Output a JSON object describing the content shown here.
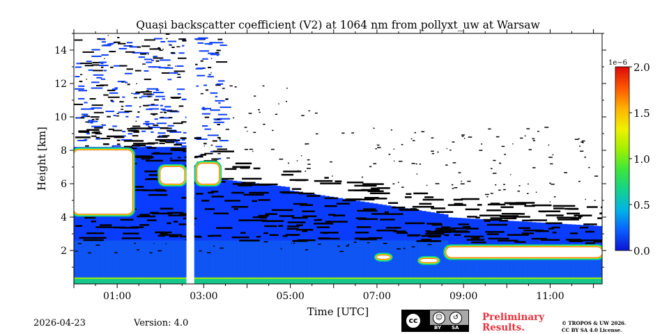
{
  "chart_data": {
    "type": "heatmap",
    "title": "Quasi backscatter coefficient (V2) at 1064 nm from pollyxt_uw at Warsaw",
    "xlabel": "Time [UTC]",
    "ylabel": "Height [km]",
    "xlim": [
      0.0,
      12.2
    ],
    "ylim": [
      0.0,
      15.0
    ],
    "x_ticks": [
      {
        "value": 1,
        "label": "01:00"
      },
      {
        "value": 3,
        "label": "03:00"
      },
      {
        "value": 5,
        "label": "05:00"
      },
      {
        "value": 7,
        "label": "07:00"
      },
      {
        "value": 9,
        "label": "09:00"
      },
      {
        "value": 11,
        "label": "11:00"
      }
    ],
    "y_ticks": [
      {
        "value": 2,
        "label": "2"
      },
      {
        "value": 4,
        "label": "4"
      },
      {
        "value": 6,
        "label": "6"
      },
      {
        "value": 8,
        "label": "8"
      },
      {
        "value": 10,
        "label": "10"
      },
      {
        "value": 12,
        "label": "12"
      },
      {
        "value": 14,
        "label": "14"
      }
    ],
    "colorbar": {
      "exponent_label": "1e−6",
      "range": [
        0.0,
        2.0
      ],
      "ticks": [
        {
          "value": 0.0,
          "label": "0.0"
        },
        {
          "value": 0.5,
          "label": "0.5"
        },
        {
          "value": 1.0,
          "label": "1.0"
        },
        {
          "value": 1.5,
          "label": "1.5"
        },
        {
          "value": 2.0,
          "label": "2.0"
        }
      ],
      "colormap": [
        "#0a14d2",
        "#0a5fff",
        "#00b4e6",
        "#14d28c",
        "#3ce63c",
        "#a0f000",
        "#f0f000",
        "#ffb400",
        "#ff5a00",
        "#dc0a0a"
      ]
    },
    "data_gap": [
      2.6,
      2.78
    ],
    "features": [
      {
        "name": "near-surface aerosol layer",
        "t_start": 0.0,
        "t_end": 12.2,
        "h_bottom": 0.0,
        "h_top": 0.3,
        "value": 1.3
      },
      {
        "name": "boundary layer aerosol",
        "t_start": 0.0,
        "t_end": 12.2,
        "h_bottom": 0.3,
        "h_top": 2.0,
        "value": 0.3
      },
      {
        "name": "low cloud (saturated)",
        "t_start": 8.6,
        "t_end": 12.2,
        "h_bottom": 1.6,
        "h_top": 2.2,
        "value": 2.0
      },
      {
        "name": "mid-level cloud (saturated)",
        "t_start": 0.0,
        "t_end": 1.35,
        "h_bottom": 4.2,
        "h_top": 8.0,
        "value": 2.0
      },
      {
        "name": "cloud patch",
        "t_start": 2.0,
        "t_end": 2.55,
        "h_bottom": 6.0,
        "h_top": 7.0,
        "value": 2.0
      },
      {
        "name": "cloud patch",
        "t_start": 2.85,
        "t_end": 3.35,
        "h_bottom": 6.0,
        "h_top": 7.2,
        "value": 1.8
      }
    ]
  },
  "footer": {
    "date": "2026-04-23",
    "version": "Version: 4.0",
    "license_badge": {
      "by": "BY",
      "sa": "SA",
      "cc": "cc"
    },
    "preliminary_line1": "Preliminary",
    "preliminary_line2": "Results.",
    "copyright_line1": "© TROPOS & UW 2026.",
    "copyright_line2": "CC BY SA 4.0 License."
  }
}
